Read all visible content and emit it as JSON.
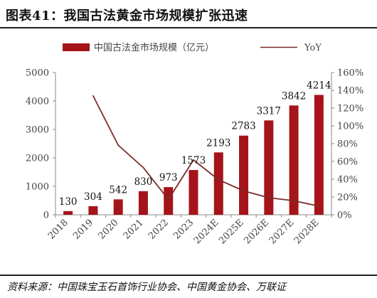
{
  "figure": {
    "title": "图表41：我国古法黄金市场规模扩张迅速",
    "source": "资料来源：中国珠宝玉石首饰行业协会、中国黄金协会、万联证"
  },
  "colors": {
    "bar": "#a5141a",
    "line": "#7a2a2a",
    "axis": "#888888"
  },
  "chart_data": {
    "type": "bar",
    "categories": [
      "2018",
      "2019",
      "2020",
      "2021",
      "2022",
      "2023",
      "2024E",
      "2025E",
      "2026E",
      "2027E",
      "2028E"
    ],
    "series": [
      {
        "name": "中国古法金市场规模（亿元）",
        "type": "bar",
        "axis": "left",
        "values": [
          130,
          304,
          542,
          830,
          973,
          1573,
          2193,
          2783,
          3317,
          3842,
          4214
        ],
        "labels": [
          "130",
          "304",
          "542",
          "830",
          "973",
          "1573",
          "2193",
          "2783",
          "3317",
          "3842",
          "4214"
        ]
      },
      {
        "name": "YoY",
        "type": "line",
        "axis": "right",
        "values": [
          null,
          133.8,
          78.3,
          53.1,
          17.2,
          61.7,
          39.4,
          26.9,
          19.2,
          15.8,
          9.7
        ]
      }
    ],
    "y_left": {
      "min": 0,
      "max": 5000,
      "ticks": [
        "0",
        "1000",
        "2000",
        "3000",
        "4000",
        "5000"
      ]
    },
    "y_right": {
      "min": 0,
      "max": 160,
      "ticks": [
        "0%",
        "20%",
        "40%",
        "60%",
        "80%",
        "100%",
        "120%",
        "140%",
        "160%"
      ]
    },
    "legend_position": "top",
    "grid": false
  }
}
